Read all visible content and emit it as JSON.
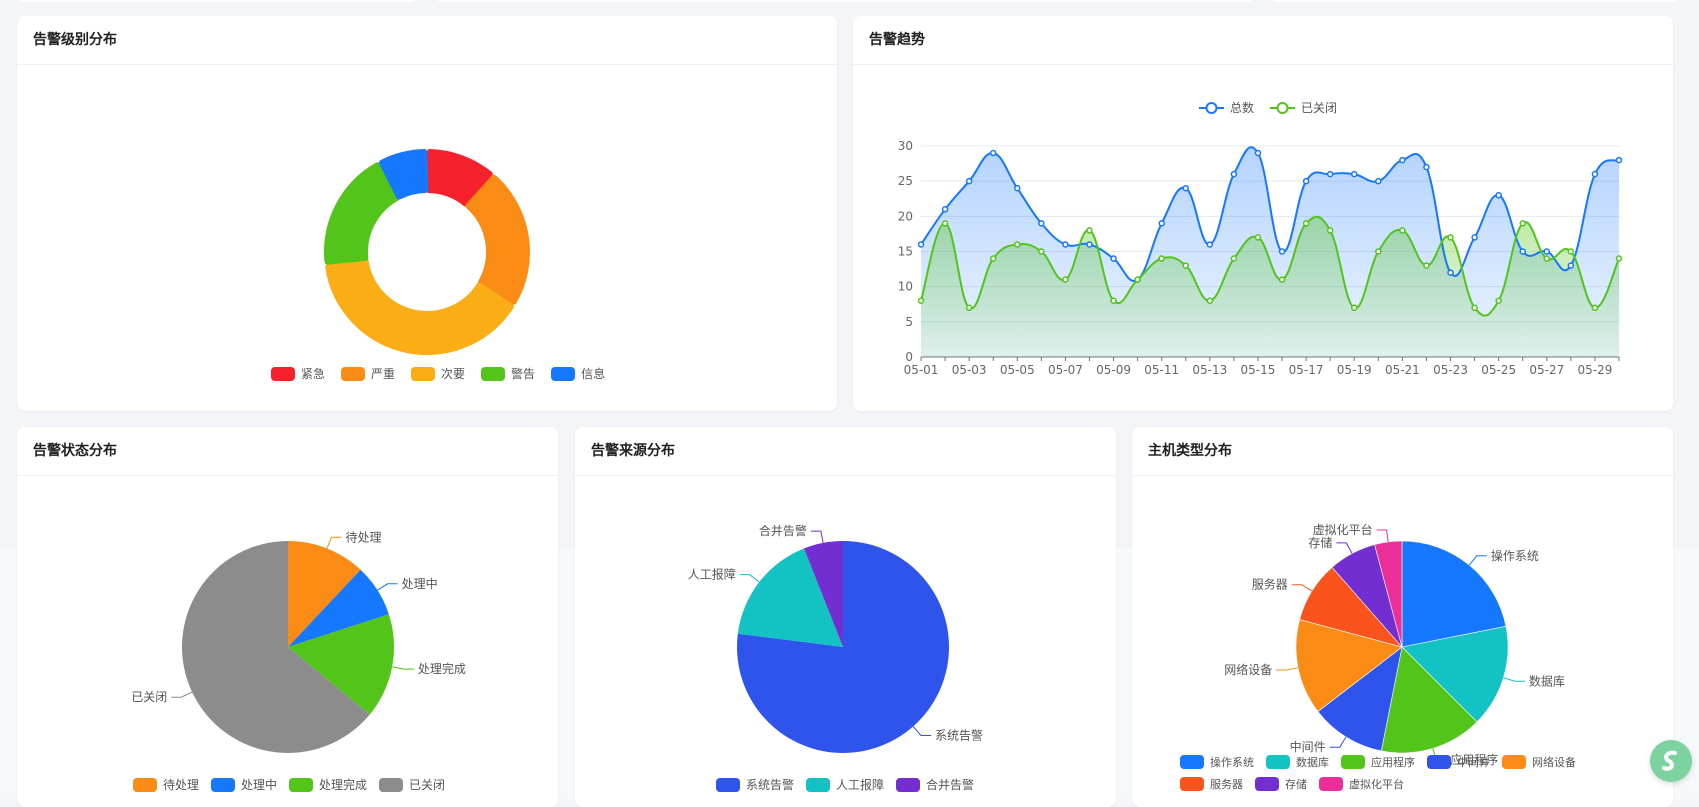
{
  "colors": {
    "blue": "#1677ff",
    "orange": "#fa8c16",
    "yellow": "#faad14",
    "green": "#52c41a",
    "red": "#f5222d",
    "gray": "#8c8c8c",
    "royal": "#2f54eb",
    "cyan": "#13c2c2",
    "purple": "#722ed1",
    "orangered": "#fa541c",
    "magenta": "#eb2f96"
  },
  "cards": {
    "level": {
      "title": "告警级别分布"
    },
    "trend": {
      "title": "告警趋势"
    },
    "status": {
      "title": "告警状态分布"
    },
    "source": {
      "title": "告警来源分布"
    },
    "host": {
      "title": "主机类型分布"
    }
  },
  "assistant": {
    "icon": "assistant-logo-icon"
  },
  "chart_data": [
    {
      "id": "level",
      "type": "pie",
      "variant": "donut",
      "legend_position": "bottom",
      "slices": [
        {
          "label": "紧急",
          "value": 10,
          "color": "#f5222d"
        },
        {
          "label": "严重",
          "value": 20,
          "color": "#fa8c16"
        },
        {
          "label": "次要",
          "value": 35,
          "color": "#faad14"
        },
        {
          "label": "警告",
          "value": 17,
          "color": "#52c41a"
        },
        {
          "label": "信息",
          "value": 7,
          "color": "#1677ff"
        }
      ]
    },
    {
      "id": "trend",
      "type": "area",
      "smooth": true,
      "legend_position": "top",
      "grid": true,
      "ylim": [
        0,
        30
      ],
      "yticks": [
        0,
        5,
        10,
        15,
        20,
        25,
        30
      ],
      "x": [
        "05-01",
        "05-02",
        "05-03",
        "05-04",
        "05-05",
        "05-06",
        "05-07",
        "05-08",
        "05-09",
        "05-10",
        "05-11",
        "05-12",
        "05-13",
        "05-14",
        "05-15",
        "05-16",
        "05-17",
        "05-18",
        "05-19",
        "05-20",
        "05-21",
        "05-22",
        "05-23",
        "05-24",
        "05-25",
        "05-26",
        "05-27",
        "05-28",
        "05-29",
        "05-30"
      ],
      "xtick_labels": [
        "05-01",
        "05-03",
        "05-05",
        "05-07",
        "05-09",
        "05-11",
        "05-13",
        "05-15",
        "05-17",
        "05-19",
        "05-21",
        "05-23",
        "05-25",
        "05-27",
        "05-29"
      ],
      "series": [
        {
          "name": "总数",
          "color": "#1677ff",
          "values": [
            16,
            21,
            25,
            29,
            24,
            19,
            16,
            16,
            14,
            11,
            19,
            24,
            16,
            26,
            29,
            15,
            25,
            26,
            26,
            25,
            28,
            27,
            12,
            17,
            23,
            15,
            15,
            13,
            26,
            28
          ]
        },
        {
          "name": "已关闭",
          "color": "#52c41a",
          "values": [
            8,
            19,
            7,
            14,
            16,
            15,
            11,
            18,
            8,
            11,
            14,
            13,
            8,
            14,
            17,
            11,
            19,
            18,
            7,
            15,
            18,
            13,
            17,
            7,
            8,
            19,
            14,
            15,
            7,
            14
          ]
        }
      ]
    },
    {
      "id": "status",
      "type": "pie",
      "legend_position": "bottom",
      "slices": [
        {
          "label": "待处理",
          "value": 12,
          "color": "#fa8c16"
        },
        {
          "label": "处理中",
          "value": 8,
          "color": "#1677ff"
        },
        {
          "label": "处理完成",
          "value": 16,
          "color": "#52c41a"
        },
        {
          "label": "已关闭",
          "value": 64,
          "color": "#8c8c8c"
        }
      ]
    },
    {
      "id": "source",
      "type": "pie",
      "legend_position": "bottom",
      "slices": [
        {
          "label": "系统告警",
          "value": 77,
          "color": "#2f54eb"
        },
        {
          "label": "人工报障",
          "value": 17,
          "color": "#13c2c2"
        },
        {
          "label": "合并告警",
          "value": 6,
          "color": "#722ed1"
        }
      ]
    },
    {
      "id": "host",
      "type": "pie",
      "legend_position": "bottom",
      "slices": [
        {
          "label": "操作系统",
          "value": 21,
          "color": "#1677ff"
        },
        {
          "label": "数据库",
          "value": 15,
          "color": "#13c2c2"
        },
        {
          "label": "应用程序",
          "value": 15,
          "color": "#52c41a"
        },
        {
          "label": "中间件",
          "value": 11,
          "color": "#2f54eb"
        },
        {
          "label": "网络设备",
          "value": 14,
          "color": "#fa8c16"
        },
        {
          "label": "服务器",
          "value": 9,
          "color": "#fa541c"
        },
        {
          "label": "存储",
          "value": 7,
          "color": "#722ed1"
        },
        {
          "label": "虚拟化平台",
          "value": 4,
          "color": "#eb2f96"
        }
      ]
    }
  ]
}
